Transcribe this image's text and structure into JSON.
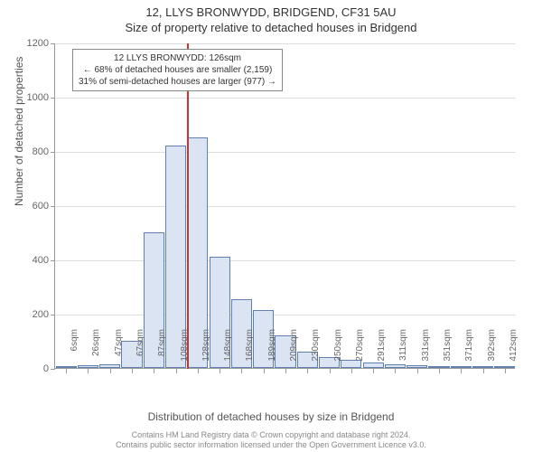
{
  "title_main": "12, LLYS BRONWYDD, BRIDGEND, CF31 5AU",
  "title_sub": "Size of property relative to detached houses in Bridgend",
  "histogram": {
    "type": "histogram",
    "categories": [
      "6sqm",
      "26sqm",
      "47sqm",
      "67sqm",
      "87sqm",
      "108sqm",
      "128sqm",
      "148sqm",
      "168sqm",
      "189sqm",
      "209sqm",
      "230sqm",
      "250sqm",
      "270sqm",
      "291sqm",
      "311sqm",
      "331sqm",
      "351sqm",
      "371sqm",
      "392sqm",
      "412sqm"
    ],
    "values": [
      5,
      10,
      15,
      100,
      500,
      820,
      850,
      410,
      255,
      215,
      120,
      60,
      40,
      30,
      20,
      15,
      10,
      8,
      6,
      5,
      4
    ],
    "ylim": [
      0,
      1200
    ],
    "ytick_step": 200,
    "bar_fill": "#dae4f2",
    "bar_stroke": "#6080b0",
    "grid_color": "#dddddd",
    "axis_color": "#999999",
    "background_color": "#ffffff",
    "label_fontsize": 11,
    "tick_fontsize": 10
  },
  "marker": {
    "value_category_index": 6,
    "line_color": "#cc3333",
    "line_width": 2
  },
  "annotation": {
    "lines": [
      "12 LLYS BRONWYDD: 126sqm",
      "← 68% of detached houses are smaller (2,159)",
      "31% of semi-detached houses are larger (977) →"
    ],
    "border_color": "#888888",
    "background_color": "#ffffff",
    "fontsize": 10
  },
  "yaxis_label": "Number of detached properties",
  "xaxis_label": "Distribution of detached houses by size in Bridgend",
  "footer_line1": "Contains HM Land Registry data © Crown copyright and database right 2024.",
  "footer_line2": "Contains public sector information licensed under the Open Government Licence v3.0."
}
